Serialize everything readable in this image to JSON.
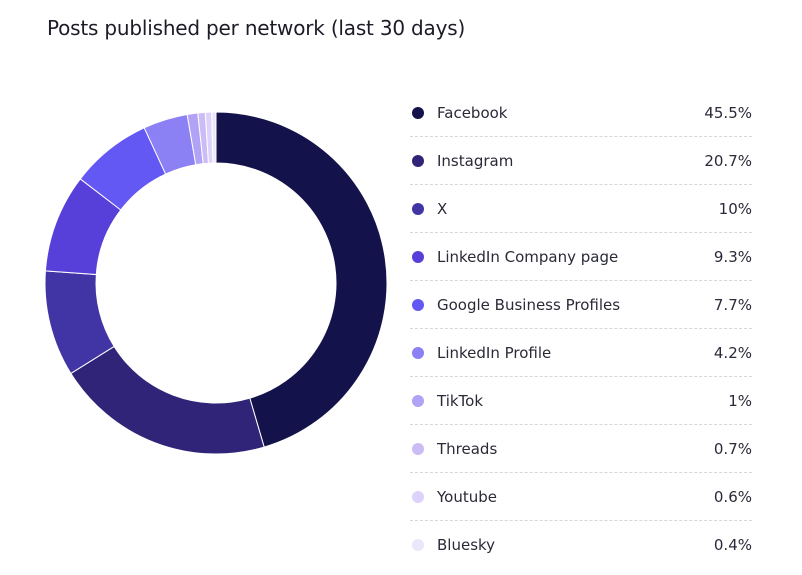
{
  "chart_data": {
    "type": "pie",
    "variant": "donut",
    "title": "Posts published per network (last 30 days)",
    "categories": [
      "Facebook",
      "Instagram",
      "X",
      "LinkedIn Company page",
      "Google Business Profiles",
      "LinkedIn Profile",
      "TikTok",
      "Threads",
      "Youtube",
      "Bluesky"
    ],
    "values": [
      45.5,
      20.7,
      10,
      9.3,
      7.7,
      4.2,
      1,
      0.7,
      0.6,
      0.4
    ],
    "value_labels": [
      "45.5%",
      "20.7%",
      "10%",
      "9.3%",
      "7.7%",
      "4.2%",
      "1%",
      "0.7%",
      "0.6%",
      "0.4%"
    ],
    "colors": [
      "#14124a",
      "#2f2478",
      "#4134a4",
      "#5640d9",
      "#6358f4",
      "#8c80f5",
      "#b2a2f5",
      "#ccbcf6",
      "#ddd2f9",
      "#ece6fb"
    ],
    "unit": "%",
    "legend_position": "right"
  }
}
